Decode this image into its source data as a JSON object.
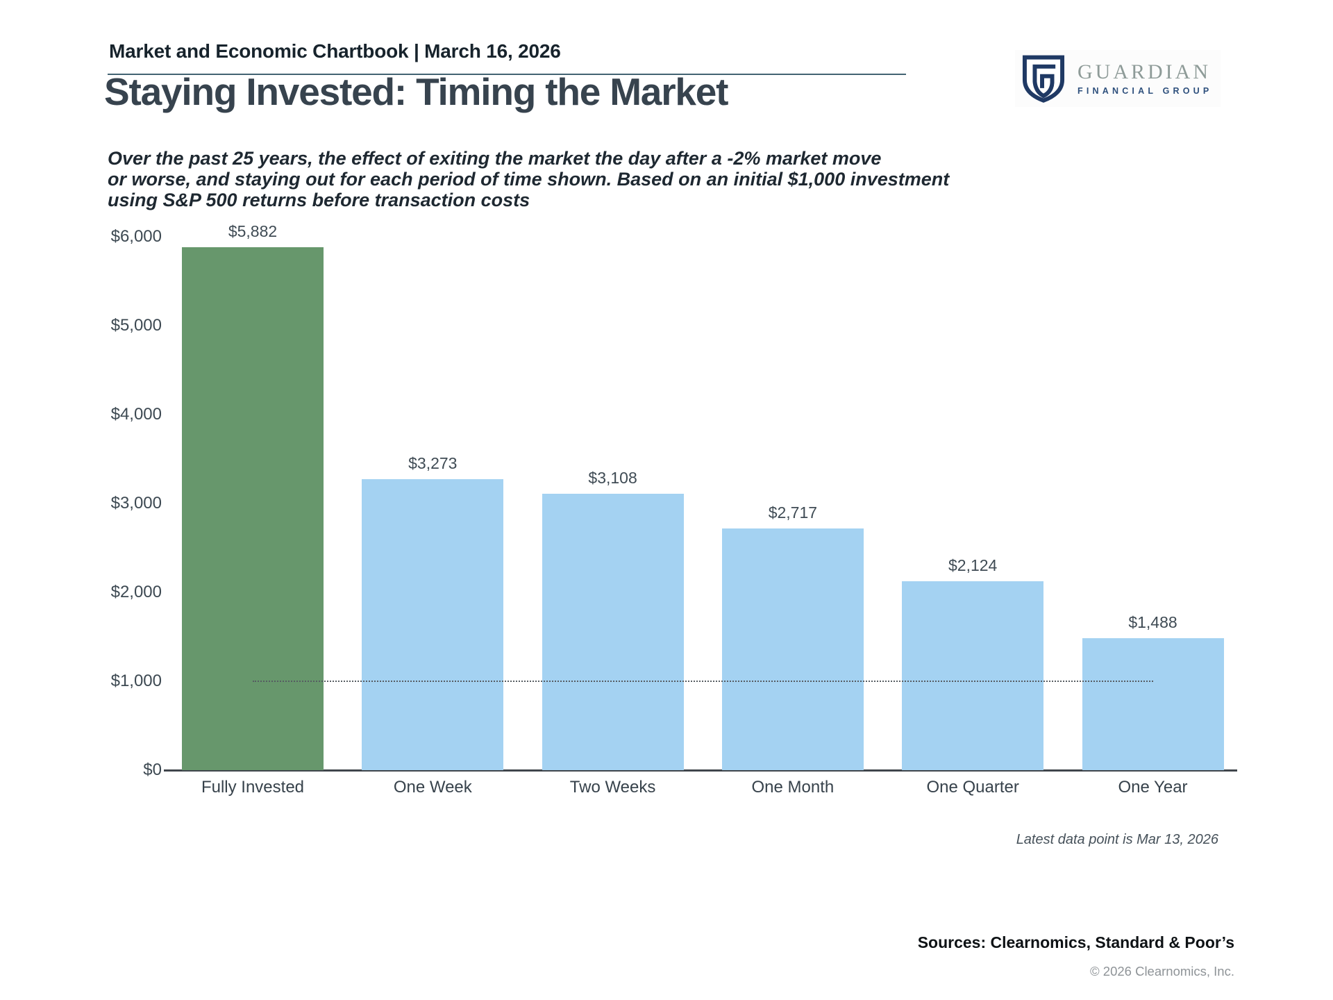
{
  "page": {
    "header": {
      "title": "Market and Economic Chartbook | March 16, 2026",
      "logo": {
        "name": "GUARDIAN",
        "subname": "FINANCIAL GROUP",
        "shield_color": "#1f3964",
        "name_color": "#8e9b98"
      }
    },
    "main_title": "Staying Invested: Timing the Market",
    "subtitle_lines": [
      "Over the past 25 years, the effect of exiting the market the day after a -2% market move",
      "or worse, and staying out for each period of time shown. Based on an initial $1,000 investment",
      "using S&P 500 returns before transaction costs"
    ],
    "footnote": "Latest data point is Mar 13, 2026",
    "sources": "Sources: Clearnomics, Standard & Poor’s",
    "copyright": "© 2026 Clearnomics, Inc."
  },
  "chart_data": {
    "type": "bar",
    "title": "Staying Invested: Timing the Market",
    "categories": [
      "Fully Invested",
      "One Week",
      "Two Weeks",
      "One Month",
      "One Quarter",
      "One Year"
    ],
    "values": [
      5882,
      3273,
      3108,
      2717,
      2124,
      1488
    ],
    "value_labels": [
      "$5,882",
      "$3,273",
      "$3,108",
      "$2,717",
      "$2,124",
      "$1,488"
    ],
    "bar_colors": [
      "#67976c",
      "#a4d2f2",
      "#a4d2f2",
      "#a4d2f2",
      "#a4d2f2",
      "#a4d2f2"
    ],
    "highlight_color": "#67976c",
    "default_color": "#a4d2f2",
    "y_ticks": [
      "$6,000",
      "$5,000",
      "$4,000",
      "$3,000",
      "$2,000",
      "$1,000",
      "$0"
    ],
    "y_tick_values": [
      6000,
      5000,
      4000,
      3000,
      2000,
      1000,
      0
    ],
    "ylim": [
      0,
      6000
    ],
    "xlabel": "",
    "ylabel": "",
    "grid": false,
    "legend": null,
    "reference_line": {
      "value": 1000,
      "style": "dotted",
      "start_category": "Fully Invested",
      "end_category": "One Year"
    }
  }
}
